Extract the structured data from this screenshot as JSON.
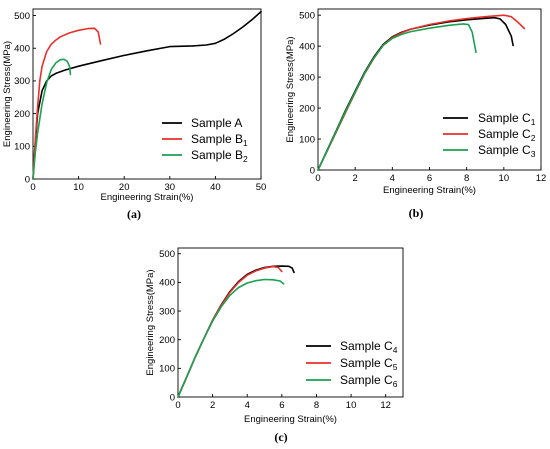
{
  "chart_data": [
    {
      "type": "line",
      "id": "a",
      "panel_label": "(a)",
      "title": "",
      "xlabel": "Engineering Strain(%)",
      "ylabel": "Engineering Stress(MPa)",
      "xlim": [
        0,
        50
      ],
      "ylim": [
        0,
        520
      ],
      "xticks": [
        0,
        10,
        20,
        30,
        40,
        50
      ],
      "yticks": [
        0,
        100,
        200,
        300,
        400,
        500
      ],
      "grid": false,
      "legend_position": "bottom-right",
      "series": [
        {
          "name": "Sample A",
          "legend": {
            "base": "Sample A",
            "sub": ""
          },
          "color": "#000000",
          "x": [
            0,
            0.5,
            1,
            2,
            3,
            4,
            5,
            7,
            10,
            15,
            20,
            25,
            30,
            35,
            38,
            40,
            42,
            44,
            46,
            48,
            50
          ],
          "y": [
            0,
            110,
            200,
            270,
            300,
            315,
            323,
            333,
            345,
            362,
            378,
            392,
            405,
            407,
            410,
            415,
            428,
            445,
            465,
            487,
            512
          ]
        },
        {
          "name": "Sample B1",
          "legend": {
            "base": "Sample B",
            "sub": "1"
          },
          "color": "#e8302a",
          "x": [
            0,
            0.5,
            1,
            1.5,
            2,
            3,
            4,
            5,
            6,
            8,
            10,
            12,
            13.5,
            14.3,
            14.8
          ],
          "y": [
            0,
            120,
            220,
            300,
            345,
            390,
            412,
            425,
            435,
            447,
            455,
            460,
            461,
            450,
            413
          ]
        },
        {
          "name": "Sample B2",
          "legend": {
            "base": "Sample B",
            "sub": "2"
          },
          "color": "#1ba150",
          "x": [
            0,
            0.5,
            1,
            2,
            3,
            4,
            5,
            6,
            6.8,
            7.5,
            8.0,
            8.2
          ],
          "y": [
            0,
            80,
            140,
            230,
            295,
            335,
            355,
            365,
            366,
            360,
            345,
            320
          ]
        }
      ]
    },
    {
      "type": "line",
      "id": "b",
      "panel_label": "(b)",
      "title": "",
      "xlabel": "Engineering Strain(%)",
      "ylabel": "Engineering Stress(MPa)",
      "xlim": [
        0,
        12
      ],
      "ylim": [
        0,
        520
      ],
      "xticks": [
        0,
        2,
        4,
        6,
        8,
        10,
        12
      ],
      "yticks": [
        0,
        100,
        200,
        300,
        400,
        500
      ],
      "grid": false,
      "legend_position": "right",
      "series": [
        {
          "name": "Sample C1",
          "legend": {
            "base": "Sample C",
            "sub": "1"
          },
          "color": "#000000",
          "x": [
            0,
            0.5,
            1,
            1.5,
            2,
            2.5,
            3,
            3.5,
            4,
            4.5,
            5,
            6,
            7,
            8,
            9,
            9.5,
            9.8,
            10.1,
            10.4,
            10.5
          ],
          "y": [
            0,
            65,
            130,
            195,
            255,
            315,
            365,
            405,
            430,
            445,
            455,
            468,
            478,
            485,
            490,
            492,
            488,
            470,
            432,
            402
          ]
        },
        {
          "name": "Sample C2",
          "legend": {
            "base": "Sample C",
            "sub": "2"
          },
          "color": "#e8302a",
          "x": [
            0,
            0.5,
            1,
            1.5,
            2,
            2.5,
            3,
            3.5,
            4,
            4.5,
            5,
            6,
            7,
            8,
            9,
            10,
            10.4,
            10.8,
            11.1
          ],
          "y": [
            0,
            62,
            125,
            188,
            250,
            310,
            360,
            402,
            428,
            443,
            455,
            470,
            481,
            489,
            495,
            500,
            495,
            475,
            457
          ]
        },
        {
          "name": "Sample C3",
          "legend": {
            "base": "Sample C",
            "sub": "3"
          },
          "color": "#1ba150",
          "x": [
            0,
            0.5,
            1,
            1.5,
            2,
            2.5,
            3,
            3.5,
            4,
            4.5,
            5,
            6,
            7,
            7.8,
            8.1,
            8.3,
            8.5
          ],
          "y": [
            0,
            63,
            128,
            192,
            252,
            312,
            362,
            402,
            425,
            438,
            447,
            458,
            467,
            472,
            470,
            445,
            380
          ]
        }
      ]
    },
    {
      "type": "line",
      "id": "c",
      "panel_label": "(c)",
      "title": "",
      "xlabel": "Engineering Strain(%)",
      "ylabel": "Engineering Stress(MPa)",
      "xlim": [
        0,
        13
      ],
      "ylim": [
        0,
        520
      ],
      "xticks": [
        0,
        2,
        4,
        6,
        8,
        10,
        12
      ],
      "yticks": [
        0,
        100,
        200,
        300,
        400,
        500
      ],
      "grid": false,
      "legend_position": "right",
      "series": [
        {
          "name": "Sample C4",
          "legend": {
            "base": "Sample C",
            "sub": "4"
          },
          "color": "#000000",
          "x": [
            0,
            0.5,
            1,
            1.5,
            2,
            2.5,
            3,
            3.5,
            4,
            4.5,
            5,
            5.5,
            6,
            6.4,
            6.6,
            6.7
          ],
          "y": [
            0,
            70,
            140,
            205,
            268,
            322,
            368,
            403,
            428,
            443,
            452,
            456,
            457,
            456,
            450,
            435
          ]
        },
        {
          "name": "Sample C5",
          "legend": {
            "base": "Sample C",
            "sub": "5"
          },
          "color": "#e8302a",
          "x": [
            0,
            0.5,
            1,
            1.5,
            2,
            2.5,
            3,
            3.5,
            4,
            4.5,
            5,
            5.5,
            5.8,
            6.0
          ],
          "y": [
            0,
            70,
            140,
            205,
            268,
            320,
            365,
            400,
            425,
            440,
            450,
            455,
            452,
            438
          ]
        },
        {
          "name": "Sample C6",
          "legend": {
            "base": "Sample C",
            "sub": "6"
          },
          "color": "#1ba150",
          "x": [
            0,
            0.5,
            1,
            1.5,
            2,
            2.5,
            3,
            3.5,
            4,
            4.5,
            5,
            5.5,
            5.9,
            6.1
          ],
          "y": [
            0,
            70,
            140,
            205,
            265,
            315,
            355,
            382,
            398,
            406,
            410,
            409,
            405,
            395
          ]
        }
      ]
    }
  ]
}
